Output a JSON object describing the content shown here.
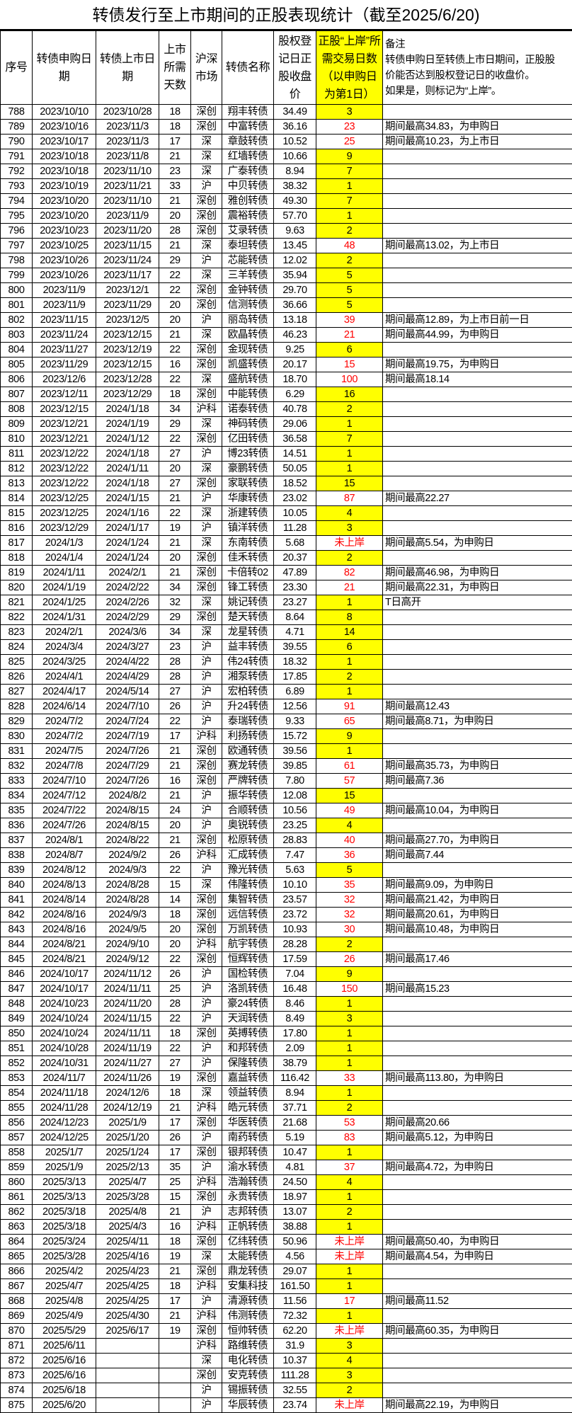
{
  "title": "转债发行至上市期间的正股表现统计（截至2025/6/20)",
  "colors": {
    "highlight": "#ffff00",
    "not_reached_text": "#ff0000"
  },
  "columns": [
    "序号",
    "转债申购日\n期",
    "转债上市日\n期",
    "上市\n所需\n天数",
    "沪深\n市场",
    "转债名称",
    "股权登\n记日正\n股收盘\n价",
    "正股“上岸”所\n需交易日数\n（以申购日\n为第1日）",
    "备注\n转债申购日至转债上市日期间，正股股\n价能否达到股权登记日的收盘价。\n如果是，则标记为“上岸”。"
  ],
  "rows": [
    [
      "788",
      "2023/10/10",
      "2023/10/28",
      "18",
      "深创",
      "翔丰转债",
      "34.49",
      "3",
      "",
      1
    ],
    [
      "789",
      "2023/10/16",
      "2023/11/3",
      "18",
      "深创",
      "中富转债",
      "36.16",
      "23",
      "期间最高34.83，为申购日",
      0
    ],
    [
      "790",
      "2023/10/17",
      "2023/11/3",
      "17",
      "深",
      "章鼓转债",
      "10.52",
      "25",
      "期间最高10.23，为上市日",
      0
    ],
    [
      "791",
      "2023/10/18",
      "2023/11/8",
      "21",
      "深",
      "红墙转债",
      "10.66",
      "9",
      "",
      1
    ],
    [
      "792",
      "2023/10/18",
      "2023/11/10",
      "23",
      "深",
      "广泰转债",
      "8.94",
      "7",
      "",
      1
    ],
    [
      "793",
      "2023/10/19",
      "2023/11/21",
      "33",
      "沪",
      "中贝转债",
      "38.32",
      "1",
      "",
      1
    ],
    [
      "794",
      "2023/10/20",
      "2023/11/10",
      "21",
      "深创",
      "雅创转债",
      "49.30",
      "7",
      "",
      1
    ],
    [
      "795",
      "2023/10/20",
      "2023/11/9",
      "20",
      "深创",
      "震裕转债",
      "57.70",
      "1",
      "",
      1
    ],
    [
      "796",
      "2023/10/23",
      "2023/11/20",
      "28",
      "深创",
      "艾录转债",
      "9.63",
      "2",
      "",
      1
    ],
    [
      "797",
      "2023/10/25",
      "2023/11/15",
      "21",
      "深",
      "泰坦转债",
      "13.45",
      "48",
      "期间最高13.02，为上市日",
      0
    ],
    [
      "798",
      "2023/10/26",
      "2023/11/24",
      "29",
      "沪",
      "芯能转债",
      "12.02",
      "2",
      "",
      1
    ],
    [
      "799",
      "2023/10/26",
      "2023/11/17",
      "22",
      "深",
      "三羊转债",
      "35.94",
      "5",
      "",
      1
    ],
    [
      "800",
      "2023/11/9",
      "2023/12/1",
      "22",
      "深创",
      "金钟转债",
      "29.70",
      "5",
      "",
      1
    ],
    [
      "801",
      "2023/11/9",
      "2023/11/29",
      "20",
      "深创",
      "信测转债",
      "36.66",
      "5",
      "",
      1
    ],
    [
      "802",
      "2023/11/15",
      "2023/12/5",
      "20",
      "沪",
      "丽岛转债",
      "13.18",
      "39",
      "期间最高12.89，为上市日前一日",
      0
    ],
    [
      "803",
      "2023/11/24",
      "2023/12/15",
      "21",
      "深",
      "欧晶转债",
      "46.23",
      "21",
      "期间最高44.99，为申购日",
      0
    ],
    [
      "804",
      "2023/11/27",
      "2023/12/19",
      "22",
      "深创",
      "金现转债",
      "9.25",
      "6",
      "",
      1
    ],
    [
      "805",
      "2023/11/29",
      "2023/12/15",
      "16",
      "深创",
      "凯盛转债",
      "20.17",
      "15",
      "期间最高19.75，为申购日",
      0
    ],
    [
      "806",
      "2023/12/6",
      "2023/12/28",
      "22",
      "深",
      "盛航转债",
      "18.70",
      "100",
      "期间最高18.14",
      0
    ],
    [
      "807",
      "2023/12/11",
      "2023/12/29",
      "18",
      "深创",
      "中能转债",
      "6.29",
      "16",
      "",
      1
    ],
    [
      "808",
      "2023/12/15",
      "2024/1/18",
      "34",
      "沪科",
      "诺泰转债",
      "40.78",
      "2",
      "",
      1
    ],
    [
      "809",
      "2023/12/21",
      "2024/1/19",
      "29",
      "深",
      "神码转债",
      "29.06",
      "1",
      "",
      1
    ],
    [
      "810",
      "2023/12/21",
      "2024/1/12",
      "22",
      "深创",
      "亿田转债",
      "36.58",
      "7",
      "",
      1
    ],
    [
      "811",
      "2023/12/22",
      "2024/1/18",
      "27",
      "沪",
      "博23转债",
      "14.51",
      "1",
      "",
      1
    ],
    [
      "812",
      "2023/12/22",
      "2024/1/11",
      "20",
      "深",
      "豪鹏转债",
      "50.05",
      "1",
      "",
      1
    ],
    [
      "813",
      "2023/12/22",
      "2024/1/18",
      "27",
      "深创",
      "家联转债",
      "18.52",
      "15",
      "",
      1
    ],
    [
      "814",
      "2023/12/25",
      "2024/1/15",
      "21",
      "沪",
      "华康转债",
      "23.02",
      "87",
      "期间最高22.27",
      0
    ],
    [
      "815",
      "2023/12/25",
      "2024/1/16",
      "22",
      "深",
      "浙建转债",
      "10.05",
      "4",
      "",
      1
    ],
    [
      "816",
      "2023/12/29",
      "2024/1/17",
      "19",
      "沪",
      "镇洋转债",
      "11.28",
      "3",
      "",
      1
    ],
    [
      "817",
      "2024/1/3",
      "2024/1/24",
      "21",
      "深",
      "东南转债",
      "5.68",
      "未上岸",
      "期间最高5.54，为申购日",
      0
    ],
    [
      "818",
      "2024/1/4",
      "2024/1/24",
      "20",
      "深创",
      "佳禾转债",
      "20.37",
      "2",
      "",
      1
    ],
    [
      "819",
      "2024/1/11",
      "2024/2/1",
      "21",
      "深创",
      "卡倍转02",
      "47.89",
      "82",
      "期间最高46.98，为申购日",
      0
    ],
    [
      "820",
      "2024/1/19",
      "2024/2/22",
      "34",
      "深创",
      "锋工转债",
      "23.30",
      "21",
      "期间最高22.31，为申购日",
      0
    ],
    [
      "821",
      "2024/1/25",
      "2024/2/26",
      "32",
      "深",
      "姚记转债",
      "23.27",
      "1",
      "T日高开",
      1
    ],
    [
      "822",
      "2024/1/31",
      "2024/2/29",
      "29",
      "深创",
      "楚天转债",
      "8.64",
      "8",
      "",
      1
    ],
    [
      "823",
      "2024/2/1",
      "2024/3/6",
      "34",
      "深",
      "龙星转债",
      "4.71",
      "14",
      "",
      1
    ],
    [
      "824",
      "2024/3/4",
      "2024/3/27",
      "23",
      "沪",
      "益丰转债",
      "39.55",
      "6",
      "",
      1
    ],
    [
      "825",
      "2024/3/25",
      "2024/4/22",
      "28",
      "沪",
      "伟24转债",
      "18.32",
      "1",
      "",
      1
    ],
    [
      "826",
      "2024/4/1",
      "2024/4/29",
      "28",
      "沪",
      "湘泵转债",
      "17.85",
      "2",
      "",
      1
    ],
    [
      "827",
      "2024/4/17",
      "2024/5/14",
      "27",
      "沪",
      "宏柏转债",
      "6.89",
      "1",
      "",
      1
    ],
    [
      "828",
      "2024/6/14",
      "2024/7/10",
      "26",
      "沪",
      "升24转债",
      "12.56",
      "91",
      "期间最高12.43",
      0
    ],
    [
      "829",
      "2024/7/2",
      "2024/7/24",
      "22",
      "沪",
      "泰瑞转债",
      "9.33",
      "65",
      "期间最高8.71，为申购日",
      0
    ],
    [
      "830",
      "2024/7/2",
      "2024/7/19",
      "17",
      "沪科",
      "利扬转债",
      "15.72",
      "9",
      "",
      1
    ],
    [
      "831",
      "2024/7/5",
      "2024/7/26",
      "21",
      "深创",
      "欧通转债",
      "39.56",
      "1",
      "",
      1
    ],
    [
      "832",
      "2024/7/8",
      "2024/7/29",
      "21",
      "深创",
      "赛龙转债",
      "39.85",
      "61",
      "期间最高35.73，为申购日",
      0
    ],
    [
      "833",
      "2024/7/10",
      "2024/7/26",
      "16",
      "深创",
      "严牌转债",
      "7.80",
      "57",
      "期间最高7.36",
      0
    ],
    [
      "834",
      "2024/7/12",
      "2024/8/2",
      "21",
      "沪",
      "振华转债",
      "12.08",
      "15",
      "",
      1
    ],
    [
      "835",
      "2024/7/22",
      "2024/8/15",
      "24",
      "沪",
      "合顺转债",
      "10.56",
      "49",
      "期间最高10.04，为申购日",
      0
    ],
    [
      "836",
      "2024/7/26",
      "2024/8/15",
      "20",
      "沪",
      "奥锐转债",
      "23.25",
      "4",
      "",
      1
    ],
    [
      "837",
      "2024/8/1",
      "2024/8/22",
      "21",
      "深创",
      "松原转债",
      "28.83",
      "40",
      "期间最高27.70，为申购日",
      0
    ],
    [
      "838",
      "2024/8/7",
      "2024/9/2",
      "26",
      "沪科",
      "汇成转债",
      "7.47",
      "36",
      "期间最高7.44",
      0
    ],
    [
      "839",
      "2024/8/12",
      "2024/9/3",
      "22",
      "沪",
      "豫光转债",
      "5.63",
      "5",
      "",
      1
    ],
    [
      "840",
      "2024/8/13",
      "2024/8/28",
      "15",
      "深",
      "伟隆转债",
      "10.10",
      "35",
      "期间最高9.09，为申购日",
      0
    ],
    [
      "841",
      "2024/8/14",
      "2024/8/28",
      "14",
      "深创",
      "集智转债",
      "23.57",
      "32",
      "期间最高21.42，为申购日",
      0
    ],
    [
      "842",
      "2024/8/16",
      "2024/9/3",
      "18",
      "深创",
      "远信转债",
      "23.72",
      "32",
      "期间最高20.61，为申购日",
      0
    ],
    [
      "843",
      "2024/8/16",
      "2024/9/5",
      "20",
      "深创",
      "万凯转债",
      "10.93",
      "30",
      "期间最高10.48，为申购日",
      0
    ],
    [
      "844",
      "2024/8/21",
      "2024/9/10",
      "20",
      "沪科",
      "航宇转债",
      "28.28",
      "2",
      "",
      1
    ],
    [
      "845",
      "2024/8/21",
      "2024/9/12",
      "22",
      "深创",
      "恒辉转债",
      "17.59",
      "26",
      "期间最高17.46",
      0
    ],
    [
      "846",
      "2024/10/17",
      "2024/11/12",
      "26",
      "沪",
      "国检转债",
      "7.04",
      "9",
      "",
      1
    ],
    [
      "847",
      "2024/10/17",
      "2024/11/11",
      "25",
      "沪",
      "洛凯转债",
      "16.48",
      "150",
      "期间最高15.23",
      0
    ],
    [
      "848",
      "2024/10/23",
      "2024/11/20",
      "28",
      "沪",
      "豪24转债",
      "8.46",
      "1",
      "",
      1
    ],
    [
      "849",
      "2024/10/24",
      "2024/11/15",
      "22",
      "沪",
      "天润转债",
      "8.49",
      "3",
      "",
      1
    ],
    [
      "850",
      "2024/10/24",
      "2024/11/11",
      "18",
      "深创",
      "英搏转债",
      "17.80",
      "1",
      "",
      1
    ],
    [
      "851",
      "2024/10/28",
      "2024/11/19",
      "22",
      "沪",
      "和邦转债",
      "2.09",
      "1",
      "",
      1
    ],
    [
      "852",
      "2024/10/31",
      "2024/11/27",
      "27",
      "沪",
      "保隆转债",
      "38.79",
      "1",
      "",
      1
    ],
    [
      "853",
      "2024/11/7",
      "2024/11/26",
      "19",
      "深创",
      "嘉益转债",
      "116.42",
      "33",
      "期间最高113.80，为申购日",
      0
    ],
    [
      "854",
      "2024/11/18",
      "2024/12/6",
      "18",
      "深",
      "领益转债",
      "8.94",
      "1",
      "",
      1
    ],
    [
      "855",
      "2024/11/28",
      "2024/12/19",
      "21",
      "沪科",
      "皓元转债",
      "37.71",
      "2",
      "",
      1
    ],
    [
      "856",
      "2024/12/23",
      "2025/1/9",
      "17",
      "深创",
      "华医转债",
      "21.68",
      "53",
      "期间最高20.66",
      0
    ],
    [
      "857",
      "2024/12/25",
      "2025/1/20",
      "26",
      "沪",
      "南药转债",
      "5.19",
      "83",
      "期间最高5.12，为申购日",
      0
    ],
    [
      "858",
      "2025/1/7",
      "2025/1/24",
      "17",
      "深创",
      "银邦转债",
      "10.47",
      "1",
      "",
      1
    ],
    [
      "859",
      "2025/1/9",
      "2025/2/13",
      "35",
      "沪",
      "渝水转债",
      "4.81",
      "37",
      "期间最高4.72，为申购日",
      0
    ],
    [
      "860",
      "2025/3/13",
      "2025/4/7",
      "25",
      "沪科",
      "浩瀚转债",
      "24.50",
      "4",
      "",
      1
    ],
    [
      "861",
      "2025/3/13",
      "2025/3/28",
      "15",
      "深创",
      "永贵转债",
      "18.97",
      "1",
      "",
      1
    ],
    [
      "862",
      "2025/3/18",
      "2025/4/8",
      "21",
      "沪",
      "志邦转债",
      "13.07",
      "2",
      "",
      1
    ],
    [
      "863",
      "2025/3/18",
      "2025/4/3",
      "16",
      "沪科",
      "正帆转债",
      "38.88",
      "1",
      "",
      1
    ],
    [
      "864",
      "2025/3/24",
      "2025/4/11",
      "18",
      "深创",
      "亿纬转债",
      "50.96",
      "未上岸",
      "期间最高50.40，为申购日",
      0
    ],
    [
      "865",
      "2025/3/28",
      "2025/4/16",
      "19",
      "深",
      "太能转债",
      "4.56",
      "未上岸",
      "期间最高4.54，为申购日",
      0
    ],
    [
      "866",
      "2025/4/2",
      "2025/4/23",
      "21",
      "深创",
      "鼎龙转债",
      "29.07",
      "1",
      "",
      1
    ],
    [
      "867",
      "2025/4/7",
      "2025/4/25",
      "18",
      "沪科",
      "安集科技",
      "161.50",
      "1",
      "",
      1
    ],
    [
      "868",
      "2025/4/8",
      "2025/4/25",
      "17",
      "沪",
      "清源转债",
      "11.56",
      "17",
      "期间最高11.52",
      0
    ],
    [
      "869",
      "2025/4/9",
      "2025/4/30",
      "21",
      "沪科",
      "伟测转债",
      "72.32",
      "1",
      "",
      1
    ],
    [
      "870",
      "2025/5/29",
      "2025/6/17",
      "19",
      "深创",
      "恒帅转债",
      "62.20",
      "未上岸",
      "期间最高60.35，为申购日",
      0
    ],
    [
      "871",
      "2025/6/11",
      "",
      "",
      "沪科",
      "路维转债",
      "31.9",
      "3",
      "",
      1
    ],
    [
      "872",
      "2025/6/16",
      "",
      "",
      "深",
      "电化转债",
      "10.37",
      "4",
      "",
      1
    ],
    [
      "873",
      "2025/6/16",
      "",
      "",
      "深创",
      "安克转债",
      "111.28",
      "3",
      "",
      1
    ],
    [
      "874",
      "2025/6/18",
      "",
      "",
      "沪",
      "锡振转债",
      "32.55",
      "2",
      "",
      1
    ],
    [
      "875",
      "2025/6/20",
      "",
      "",
      "沪",
      "华辰转债",
      "23.74",
      "未上岸",
      "期间最高22.19，为申购日",
      0
    ]
  ]
}
